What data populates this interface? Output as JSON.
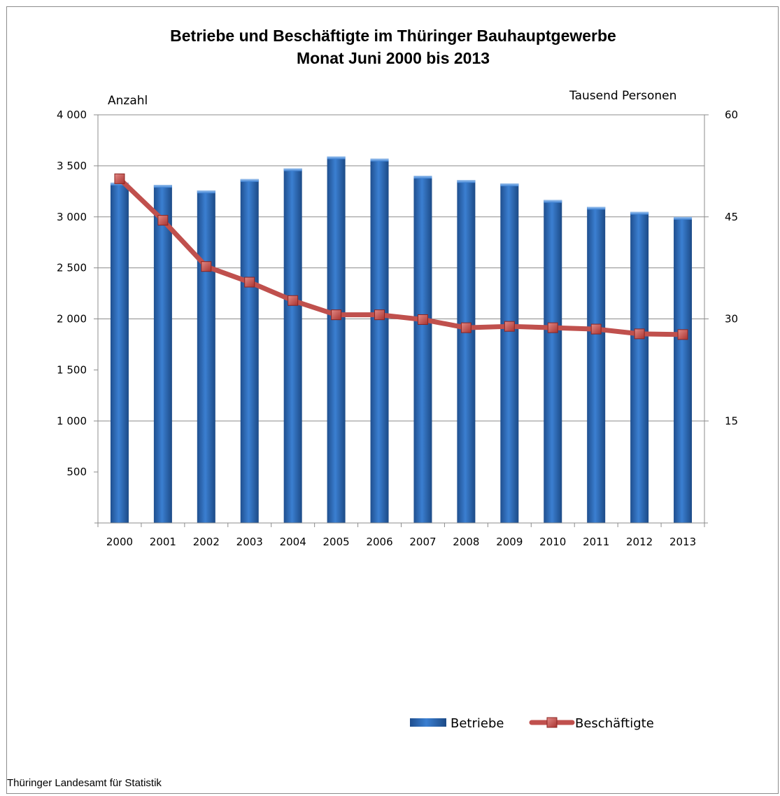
{
  "chart_data": {
    "type": "bar+line",
    "title": "Betriebe und Beschäftigte im Thüringer Bauhauptgewerbe",
    "subtitle": "Monat Juni 2000 bis 2013",
    "categories": [
      "2000",
      "2001",
      "2002",
      "2003",
      "2004",
      "2005",
      "2006",
      "2007",
      "2008",
      "2009",
      "2010",
      "2011",
      "2012",
      "2013"
    ],
    "series": [
      {
        "name": "Betriebe",
        "type": "bar",
        "axis": "left",
        "color": "#2e6fc4",
        "values": [
          3335,
          3313,
          3258,
          3370,
          3475,
          3592,
          3570,
          3402,
          3360,
          3327,
          3165,
          3098,
          3049,
          2999
        ]
      },
      {
        "name": "Beschäftigte",
        "type": "line",
        "axis": "right",
        "color": "#c0504d",
        "values": [
          50.6,
          44.5,
          37.7,
          35.4,
          32.7,
          30.6,
          30.6,
          29.9,
          28.7,
          28.9,
          28.7,
          28.5,
          27.8,
          27.7
        ]
      }
    ],
    "ylabel_left": "Anzahl",
    "ylabel_right": "Tausend  Personen",
    "ylim_left": [
      0,
      4000
    ],
    "ylim_right": [
      0,
      60
    ],
    "yticks_left": [
      {
        "value": 500,
        "label": "500"
      },
      {
        "value": 1000,
        "label": "1 000"
      },
      {
        "value": 1500,
        "label": "1 500"
      },
      {
        "value": 2000,
        "label": "2 000"
      },
      {
        "value": 2500,
        "label": "2 500"
      },
      {
        "value": 3000,
        "label": "3 000"
      },
      {
        "value": 3500,
        "label": "3 500"
      },
      {
        "value": 4000,
        "label": "4 000"
      }
    ],
    "yticks_right": [
      {
        "value": 15,
        "label": "15"
      },
      {
        "value": 30,
        "label": "30"
      },
      {
        "value": 45,
        "label": "45"
      },
      {
        "value": 60,
        "label": "60"
      }
    ],
    "gridlines_left": [
      1000,
      2000,
      2500,
      3000,
      3500,
      4000
    ],
    "legend_position": "bottom-right",
    "grid": true
  },
  "source": "Thüringer Landesamt für Statistik"
}
